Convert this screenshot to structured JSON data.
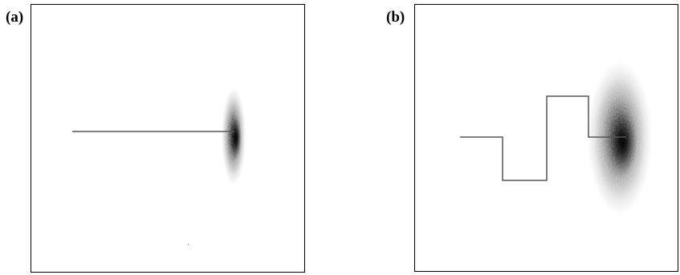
{
  "panels": [
    {
      "label": "(a)"
    },
    {
      "label": "(b)"
    }
  ],
  "colors": {
    "frame": "#000000",
    "path": "#555555",
    "blob": "#000000",
    "background": "#ffffff"
  }
}
